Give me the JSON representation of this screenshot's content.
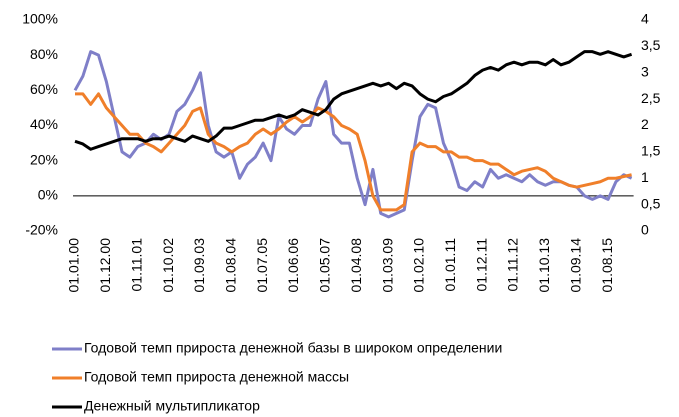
{
  "chart_data": {
    "type": "line",
    "categories": [
      "01.01.00",
      null,
      null,
      null,
      "01.12.00",
      null,
      null,
      null,
      "01.11.01",
      null,
      null,
      null,
      "01.10.02",
      null,
      null,
      null,
      "01.09.03",
      null,
      null,
      null,
      "01.08.04",
      null,
      null,
      null,
      "01.07.05",
      null,
      null,
      null,
      "01.06.06",
      null,
      null,
      null,
      "01.05.07",
      null,
      null,
      null,
      "01.04.08",
      null,
      null,
      null,
      "01.03.09",
      null,
      null,
      null,
      "01.02.10",
      null,
      null,
      null,
      "01.01.11",
      null,
      null,
      null,
      "01.12.11",
      null,
      null,
      null,
      "01.11.12",
      null,
      null,
      null,
      "01.10.13",
      null,
      null,
      null,
      "01.09.14",
      null,
      null,
      null,
      "01.08.15",
      null,
      null,
      null
    ],
    "series": [
      {
        "name": "Годовой темп прироста денежной базы в широком определении",
        "color": "#7f7fc8",
        "values": [
          60,
          68,
          82,
          80,
          65,
          45,
          25,
          22,
          28,
          30,
          35,
          32,
          35,
          48,
          52,
          60,
          70,
          40,
          25,
          22,
          25,
          10,
          18,
          22,
          30,
          20,
          45,
          38,
          35,
          40,
          40,
          55,
          65,
          35,
          30,
          30,
          10,
          -5,
          15,
          -10,
          -12,
          -10,
          -8,
          20,
          45,
          52,
          50,
          30,
          20,
          5,
          3,
          8,
          5,
          15,
          10,
          12,
          10,
          8,
          12,
          8,
          6,
          8,
          8,
          6,
          5,
          0,
          -2,
          0,
          -2,
          8,
          12,
          10
        ]
      },
      {
        "name": "Годовой темп прироста денежной массы",
        "color": "#f07f2a",
        "values": [
          58,
          58,
          52,
          58,
          50,
          45,
          40,
          35,
          35,
          30,
          28,
          25,
          30,
          35,
          40,
          48,
          50,
          35,
          30,
          28,
          25,
          28,
          30,
          35,
          38,
          35,
          38,
          42,
          45,
          42,
          45,
          50,
          48,
          45,
          40,
          38,
          35,
          20,
          0,
          -8,
          -8,
          -8,
          -5,
          25,
          30,
          28,
          28,
          25,
          25,
          22,
          22,
          20,
          20,
          18,
          18,
          15,
          12,
          14,
          15,
          16,
          14,
          10,
          8,
          6,
          5,
          6,
          7,
          8,
          10,
          10,
          11,
          12
        ]
      },
      {
        "name": "Денежный мультипликатор",
        "color": "#000000",
        "axis": "y2",
        "values": [
          1.7,
          1.65,
          1.55,
          1.6,
          1.65,
          1.7,
          1.75,
          1.75,
          1.75,
          1.7,
          1.75,
          1.75,
          1.8,
          1.75,
          1.7,
          1.8,
          1.75,
          1.7,
          1.8,
          1.95,
          1.95,
          2.0,
          2.05,
          2.1,
          2.1,
          2.15,
          2.2,
          2.15,
          2.2,
          2.3,
          2.25,
          2.2,
          2.3,
          2.5,
          2.6,
          2.65,
          2.7,
          2.75,
          2.8,
          2.75,
          2.8,
          2.7,
          2.8,
          2.75,
          2.6,
          2.5,
          2.45,
          2.55,
          2.6,
          2.7,
          2.8,
          2.95,
          3.05,
          3.1,
          3.05,
          3.15,
          3.2,
          3.15,
          3.2,
          3.2,
          3.15,
          3.25,
          3.15,
          3.2,
          3.3,
          3.4,
          3.4,
          3.35,
          3.4,
          3.35,
          3.3,
          3.35
        ]
      }
    ],
    "ylim": [
      -20,
      100
    ],
    "yticks": [
      {
        "value": -20,
        "label": "-20%"
      },
      {
        "value": 0,
        "label": "0%"
      },
      {
        "value": 20,
        "label": "20%"
      },
      {
        "value": 40,
        "label": "40%"
      },
      {
        "value": 60,
        "label": "60%"
      },
      {
        "value": 80,
        "label": "80%"
      },
      {
        "value": 100,
        "label": "100%"
      }
    ],
    "y2lim": [
      0,
      4
    ],
    "y2ticks": [
      0,
      {
        "value": 0.5,
        "label": "0,5"
      },
      1,
      {
        "value": 1.5,
        "label": "1,5"
      },
      2,
      {
        "value": 2.5,
        "label": "2,5"
      },
      3,
      {
        "value": 3.5,
        "label": "3,5"
      },
      4
    ]
  }
}
